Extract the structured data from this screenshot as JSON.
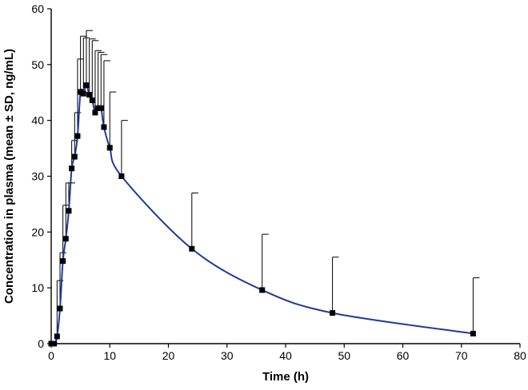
{
  "chart_data": {
    "type": "line",
    "title": "",
    "xlabel": "Time (h)",
    "ylabel": "Concentration in plasma (mean ± SD, ng/mL)",
    "xlim": [
      0,
      80
    ],
    "ylim": [
      0,
      60
    ],
    "xticks": [
      0,
      10,
      20,
      30,
      40,
      50,
      60,
      70,
      80
    ],
    "yticks": [
      0,
      10,
      20,
      30,
      40,
      50,
      60
    ],
    "grid": false,
    "legend": "none",
    "line_color": "#1f3a9e",
    "marker_color": "#000000",
    "series": [
      {
        "name": "mean",
        "points": [
          {
            "x": 0,
            "y": 0,
            "sd": 0
          },
          {
            "x": 0.5,
            "y": 0,
            "sd": 0
          },
          {
            "x": 1,
            "y": 1.3,
            "sd": 10
          },
          {
            "x": 1.5,
            "y": 6.3,
            "sd": 10
          },
          {
            "x": 2,
            "y": 14.8,
            "sd": 10
          },
          {
            "x": 2.5,
            "y": 18.8,
            "sd": 10
          },
          {
            "x": 3,
            "y": 23.8,
            "sd": 5
          },
          {
            "x": 3.5,
            "y": 31.4,
            "sd": 5
          },
          {
            "x": 4,
            "y": 33.5,
            "sd": 7.9
          },
          {
            "x": 4.5,
            "y": 37.2,
            "sd": 13.8
          },
          {
            "x": 5,
            "y": 45.1,
            "sd": 10
          },
          {
            "x": 5.5,
            "y": 44.8,
            "sd": 10
          },
          {
            "x": 6,
            "y": 46.3,
            "sd": 9.8
          },
          {
            "x": 6.5,
            "y": 44.6,
            "sd": 10
          },
          {
            "x": 7,
            "y": 43.6,
            "sd": 10.7
          },
          {
            "x": 7.5,
            "y": 41.4,
            "sd": 11.1
          },
          {
            "x": 8,
            "y": 42.2,
            "sd": 10
          },
          {
            "x": 8.5,
            "y": 42.2,
            "sd": 9.6
          },
          {
            "x": 9,
            "y": 38.8,
            "sd": 11.9
          },
          {
            "x": 10,
            "y": 35.1,
            "sd": 10
          },
          {
            "x": 12,
            "y": 30,
            "sd": 10
          },
          {
            "x": 24,
            "y": 17,
            "sd": 10
          },
          {
            "x": 36,
            "y": 9.6,
            "sd": 10
          },
          {
            "x": 48,
            "y": 5.5,
            "sd": 10
          },
          {
            "x": 72,
            "y": 1.8,
            "sd": 10
          }
        ]
      }
    ]
  }
}
